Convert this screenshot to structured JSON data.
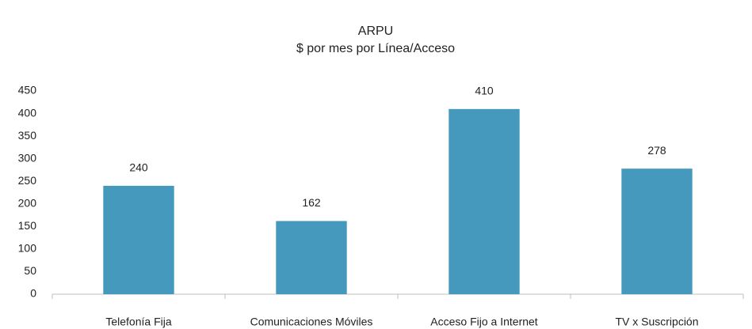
{
  "chart_data": {
    "type": "bar",
    "title": "ARPU",
    "subtitle": "$ por mes por Línea/Acceso",
    "categories": [
      "Telefonía Fija",
      "Comunicaciones Móviles",
      "Acceso Fijo a Internet",
      "TV x Suscripción"
    ],
    "values": [
      240,
      162,
      410,
      278
    ],
    "color": "#4599bd",
    "ylim": [
      0,
      450
    ],
    "yticks": [
      0,
      50,
      100,
      150,
      200,
      250,
      300,
      350,
      400,
      450
    ],
    "grid": false,
    "data_labels": true
  }
}
